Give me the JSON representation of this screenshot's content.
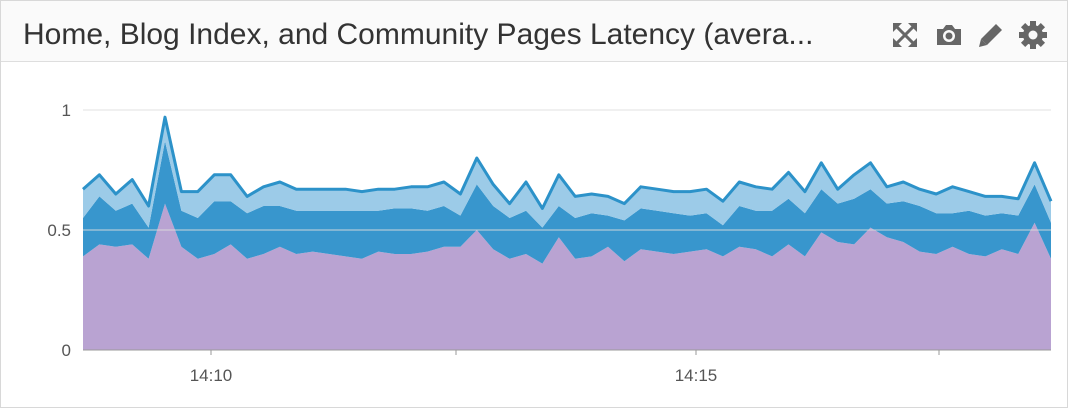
{
  "widget": {
    "title": "Home, Blog Index, and Community Pages Latency (avera...",
    "tools": [
      {
        "name": "expand-icon"
      },
      {
        "name": "camera-icon"
      },
      {
        "name": "pencil-icon"
      },
      {
        "name": "gear-icon"
      }
    ]
  },
  "colors": {
    "series_bottom": "#b9a3d2",
    "series_middle": "#3896cd",
    "series_top": "#9ccbe8",
    "top_line": "#2c92c9",
    "grid": "#dddddd",
    "axis_text": "#555555"
  },
  "chart_data": {
    "type": "area",
    "stacked": true,
    "title": "Home, Blog Index, and Community Pages Latency (avera...",
    "xlabel": "",
    "ylabel": "",
    "x_range": [
      "14:08:40",
      "14:18:40"
    ],
    "ylim": [
      0,
      1.1
    ],
    "y_ticks": [
      0,
      0.5,
      1
    ],
    "y_tick_labels": [
      "0",
      "0.5",
      "1"
    ],
    "x_ticks": [
      "14:10",
      "14:15"
    ],
    "grid": "horizontal",
    "points_per_series": 60,
    "series": [
      {
        "values": [
          0.39,
          0.44,
          0.43,
          0.44,
          0.38,
          0.61,
          0.43,
          0.38,
          0.4,
          0.44,
          0.38,
          0.4,
          0.43,
          0.4,
          0.41,
          0.4,
          0.39,
          0.38,
          0.41,
          0.4,
          0.4,
          0.41,
          0.43,
          0.43,
          0.5,
          0.42,
          0.38,
          0.4,
          0.36,
          0.47,
          0.38,
          0.39,
          0.43,
          0.37,
          0.42,
          0.41,
          0.4,
          0.41,
          0.42,
          0.39,
          0.43,
          0.42,
          0.39,
          0.44,
          0.39,
          0.49,
          0.45,
          0.44,
          0.51,
          0.47,
          0.45,
          0.41,
          0.4,
          0.43,
          0.4,
          0.39,
          0.42,
          0.4,
          0.53,
          0.38
        ]
      },
      {
        "values": [
          0.16,
          0.2,
          0.15,
          0.17,
          0.13,
          0.26,
          0.15,
          0.17,
          0.22,
          0.18,
          0.19,
          0.2,
          0.17,
          0.18,
          0.17,
          0.18,
          0.19,
          0.2,
          0.17,
          0.19,
          0.19,
          0.17,
          0.17,
          0.13,
          0.19,
          0.18,
          0.17,
          0.18,
          0.15,
          0.13,
          0.17,
          0.18,
          0.13,
          0.17,
          0.17,
          0.17,
          0.17,
          0.15,
          0.15,
          0.13,
          0.17,
          0.16,
          0.19,
          0.19,
          0.18,
          0.18,
          0.16,
          0.19,
          0.16,
          0.14,
          0.17,
          0.19,
          0.17,
          0.14,
          0.18,
          0.17,
          0.15,
          0.16,
          0.16,
          0.15
        ]
      },
      {
        "values": [
          0.12,
          0.09,
          0.07,
          0.1,
          0.09,
          0.1,
          0.08,
          0.11,
          0.11,
          0.11,
          0.07,
          0.08,
          0.1,
          0.09,
          0.09,
          0.09,
          0.09,
          0.08,
          0.09,
          0.08,
          0.09,
          0.1,
          0.1,
          0.09,
          0.11,
          0.09,
          0.06,
          0.12,
          0.08,
          0.13,
          0.09,
          0.08,
          0.08,
          0.07,
          0.09,
          0.09,
          0.09,
          0.1,
          0.1,
          0.1,
          0.1,
          0.1,
          0.09,
          0.11,
          0.09,
          0.11,
          0.06,
          0.1,
          0.11,
          0.07,
          0.08,
          0.07,
          0.08,
          0.11,
          0.08,
          0.08,
          0.07,
          0.07,
          0.09,
          0.09
        ]
      }
    ]
  }
}
